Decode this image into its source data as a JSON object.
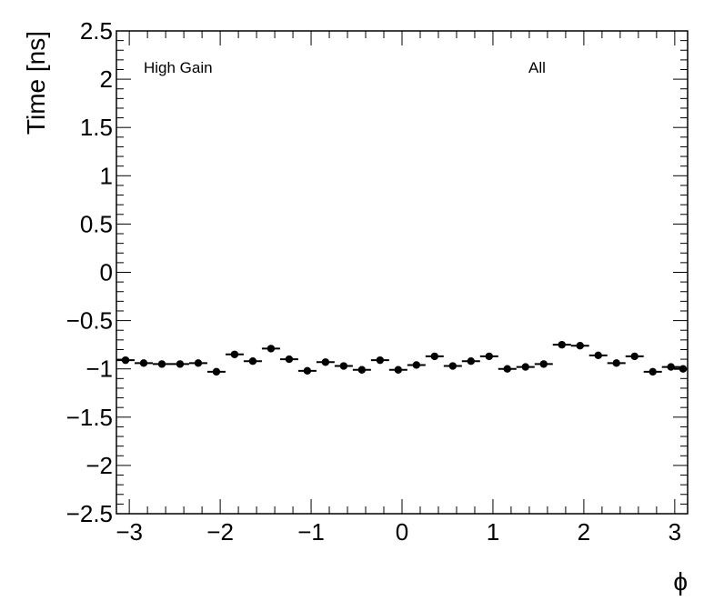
{
  "chart_data": {
    "type": "scatter",
    "ylabel": "Time [ns]",
    "xlabel": "ϕ",
    "xlim": [
      -3.1416,
      3.1416
    ],
    "ylim": [
      -2.5,
      2.5
    ],
    "x_ticks": [
      -3,
      -2,
      -1,
      0,
      1,
      2,
      3
    ],
    "x_tick_labels": [
      "−3",
      "−2",
      "−1",
      "0",
      "1",
      "2",
      "3"
    ],
    "y_ticks": [
      -2.5,
      -2,
      -1.5,
      -1,
      -0.5,
      0,
      0.5,
      1,
      1.5,
      2,
      2.5
    ],
    "y_tick_labels": [
      "−2.5",
      "−2",
      "−1.5",
      "−1",
      "−0.5",
      "0",
      "0.5",
      "1",
      "1.5",
      "2",
      "2.5"
    ],
    "grid": false,
    "annotations": {
      "left": "High Gain",
      "right": "All"
    },
    "series": [
      {
        "x": [
          -3.0416,
          -2.8416,
          -2.6416,
          -2.4416,
          -2.2416,
          -2.0416,
          -1.8416,
          -1.6416,
          -1.4416,
          -1.2416,
          -1.0416,
          -0.8416,
          -0.6416,
          -0.4416,
          -0.2416,
          -0.0416,
          0.1584,
          0.3584,
          0.5584,
          0.7584,
          0.9584,
          1.1584,
          1.3584,
          1.5584,
          1.7584,
          1.9584,
          2.1584,
          2.3584,
          2.5584,
          2.7584,
          2.9584,
          3.0916
        ],
        "y": [
          -0.91,
          -0.94,
          -0.95,
          -0.95,
          -0.94,
          -1.03,
          -0.85,
          -0.92,
          -0.79,
          -0.9,
          -1.02,
          -0.93,
          -0.97,
          -1.01,
          -0.91,
          -1.01,
          -0.96,
          -0.87,
          -0.97,
          -0.92,
          -0.87,
          -1.0,
          -0.98,
          -0.95,
          -0.75,
          -0.76,
          -0.86,
          -0.94,
          -0.87,
          -1.03,
          -0.98,
          -1.0
        ],
        "x_halfwidth": 0.1
      }
    ]
  }
}
